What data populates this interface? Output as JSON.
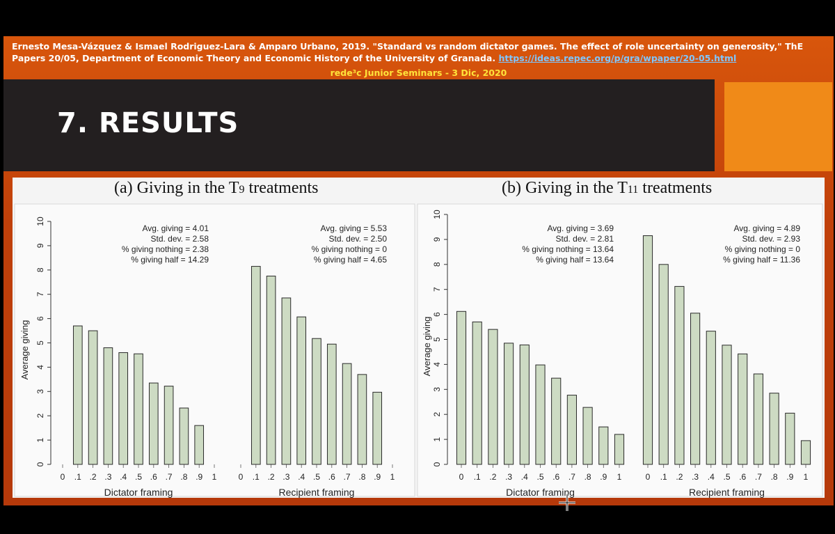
{
  "header": {
    "citation_line1": "Ernesto Mesa-Vázquez & Ismael Rodriguez-Lara & Amparo Urbano, 2019. \"Standard vs random dictator games. The effect of role uncertainty on generosity,\" ThE",
    "citation_line2": "Papers 20/05, Department of Economic Theory and Economic History of the University of Granada.",
    "citation_link": "https://ideas.repec.org/p/gra/wpaper/20-05.html",
    "seminar": "rede³c Junior Seminars - 3 Dic, 2020"
  },
  "slide_title": "7. RESULTS",
  "colors": {
    "bar_fill": "#cddbc3",
    "bar_stroke": "#2a2a2a",
    "slide_orange": "#d14a0a",
    "title_band": "#231f20",
    "accent_box": "#f08a18"
  },
  "chart_data": [
    {
      "type": "bar",
      "title_main": "(a) Giving in the T",
      "title_sub": "9",
      "title_end": " treatments",
      "ylabel": "Average giving",
      "ylim": [
        0,
        10
      ],
      "yticks": [
        "0",
        "1",
        "2",
        "3",
        "4",
        "5",
        "6",
        "7",
        "8",
        "9",
        "10"
      ],
      "panels": [
        {
          "xlabel": "Dictator framing",
          "categories": [
            "0",
            ".1",
            ".2",
            ".3",
            ".4",
            ".5",
            ".6",
            ".7",
            ".8",
            ".9",
            "1"
          ],
          "values": [
            null,
            5.7,
            5.5,
            4.8,
            4.6,
            4.55,
            3.35,
            3.22,
            2.32,
            1.6,
            null
          ],
          "stats": [
            "Avg. giving = 4.01",
            "Std. dev. = 2.58",
            "% giving nothing = 2.38",
            "% giving half = 14.29"
          ]
        },
        {
          "xlabel": "Recipient framing",
          "categories": [
            "0",
            ".1",
            ".2",
            ".3",
            ".4",
            ".5",
            ".6",
            ".7",
            ".8",
            ".9",
            "1"
          ],
          "values": [
            null,
            8.15,
            7.75,
            6.85,
            6.07,
            5.18,
            4.95,
            4.15,
            3.7,
            2.97,
            null
          ],
          "stats": [
            "Avg. giving = 5.53",
            "Std. dev. = 2.50",
            "% giving nothing = 0",
            "% giving half = 4.65"
          ]
        }
      ]
    },
    {
      "type": "bar",
      "title_main": "(b) Giving in the T",
      "title_sub": "11",
      "title_end": " treatments",
      "ylabel": "Average giving",
      "ylim": [
        0,
        10
      ],
      "yticks": [
        "0",
        "1",
        "2",
        "3",
        "4",
        "5",
        "6",
        "7",
        "8",
        "9",
        "10"
      ],
      "panels": [
        {
          "xlabel": "Dictator framing",
          "categories": [
            "0",
            ".1",
            ".2",
            ".3",
            ".4",
            ".5",
            ".6",
            ".7",
            ".8",
            ".9",
            "1"
          ],
          "values": [
            6.12,
            5.7,
            5.4,
            4.85,
            4.78,
            3.98,
            3.45,
            2.77,
            2.28,
            1.5,
            1.2
          ],
          "stats": [
            "Avg. giving = 3.69",
            "Std. dev. = 2.81",
            "% giving nothing = 13.64",
            "% giving half = 13.64"
          ]
        },
        {
          "xlabel": "Recipient framing",
          "categories": [
            "0",
            ".1",
            ".2",
            ".3",
            ".4",
            ".5",
            ".6",
            ".7",
            ".8",
            ".9",
            "1"
          ],
          "values": [
            9.15,
            8.0,
            7.12,
            6.05,
            5.33,
            4.77,
            4.42,
            3.62,
            2.85,
            2.05,
            0.95
          ],
          "stats": [
            "Avg. giving = 4.89",
            "Std. dev. = 2.93",
            "% giving nothing = 0",
            "% giving half = 11.36"
          ]
        }
      ]
    }
  ]
}
